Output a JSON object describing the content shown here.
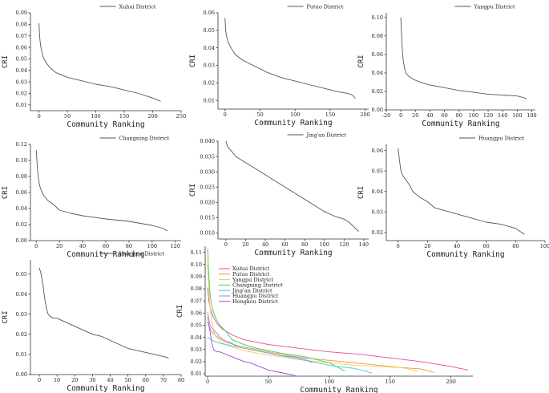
{
  "chart_data": [
    {
      "type": "line",
      "title": "",
      "xlabel": "Community Ranking",
      "ylabel": "CRI",
      "xticks": [
        0,
        50,
        100,
        150,
        200,
        250
      ],
      "yticks": [
        0.01,
        0.02,
        0.03,
        0.04,
        0.05,
        0.06,
        0.07,
        0.08,
        0.09
      ],
      "xlim": [
        -15,
        250
      ],
      "ylim": [
        0.005,
        0.09
      ],
      "series": [
        {
          "name": "Xuhui District",
          "color": "#555555",
          "x": [
            0,
            1,
            2,
            3,
            5,
            8,
            12,
            20,
            30,
            50,
            75,
            100,
            125,
            150,
            175,
            200,
            205,
            210,
            214
          ],
          "y": [
            0.081,
            0.07,
            0.065,
            0.061,
            0.056,
            0.051,
            0.047,
            0.042,
            0.038,
            0.034,
            0.031,
            0.028,
            0.026,
            0.023,
            0.02,
            0.016,
            0.015,
            0.014,
            0.013
          ]
        }
      ]
    },
    {
      "type": "line",
      "title": "",
      "xlabel": "Community Ranking",
      "ylabel": "CRI",
      "xticks": [
        0,
        50,
        100,
        150,
        200
      ],
      "yticks": [
        0.01,
        0.02,
        0.03,
        0.04,
        0.05,
        0.06
      ],
      "xlim": [
        -10,
        205
      ],
      "ylim": [
        0.005,
        0.06
      ],
      "series": [
        {
          "name": "Putuo District",
          "color": "#555555",
          "x": [
            0,
            1,
            2,
            4,
            6,
            10,
            15,
            25,
            40,
            60,
            80,
            100,
            120,
            140,
            160,
            175,
            182,
            186
          ],
          "y": [
            0.057,
            0.05,
            0.047,
            0.044,
            0.042,
            0.039,
            0.036,
            0.033,
            0.03,
            0.026,
            0.023,
            0.021,
            0.019,
            0.017,
            0.015,
            0.014,
            0.013,
            0.011
          ]
        }
      ]
    },
    {
      "type": "line",
      "title": "",
      "xlabel": "Community Ranking",
      "ylabel": "CRI",
      "xticks": [
        -20,
        0,
        20,
        40,
        60,
        80,
        100,
        120,
        140,
        160,
        180
      ],
      "yticks": [
        0.0,
        0.02,
        0.04,
        0.06,
        0.08,
        0.1
      ],
      "xlim": [
        -20,
        185
      ],
      "ylim": [
        0.0,
        0.105
      ],
      "series": [
        {
          "name": "Yangpu District",
          "color": "#555555",
          "x": [
            0,
            1,
            2,
            3,
            5,
            7,
            10,
            15,
            20,
            30,
            40,
            60,
            80,
            100,
            120,
            140,
            160,
            170,
            173
          ],
          "y": [
            0.1,
            0.08,
            0.065,
            0.055,
            0.045,
            0.04,
            0.037,
            0.034,
            0.032,
            0.029,
            0.027,
            0.024,
            0.021,
            0.019,
            0.017,
            0.016,
            0.015,
            0.013,
            0.012
          ]
        }
      ]
    },
    {
      "type": "line",
      "title": "",
      "xlabel": "Community Ranking",
      "ylabel": "CRI",
      "xticks": [
        0,
        20,
        40,
        60,
        80,
        100,
        120
      ],
      "yticks": [
        0.0,
        0.02,
        0.04,
        0.06,
        0.08,
        0.1,
        0.12
      ],
      "xlim": [
        -5,
        125
      ],
      "ylim": [
        0.0,
        0.12
      ],
      "series": [
        {
          "name": "Changning District",
          "color": "#555555",
          "x": [
            0,
            1,
            2,
            3,
            5,
            7,
            10,
            15,
            20,
            30,
            40,
            60,
            80,
            100,
            110,
            113
          ],
          "y": [
            0.113,
            0.09,
            0.076,
            0.068,
            0.06,
            0.055,
            0.05,
            0.045,
            0.038,
            0.034,
            0.031,
            0.027,
            0.024,
            0.019,
            0.015,
            0.012
          ]
        }
      ]
    },
    {
      "type": "line",
      "title": "",
      "xlabel": "Community Ranking",
      "ylabel": "CRI",
      "xticks": [
        0,
        20,
        40,
        60,
        80,
        100,
        120,
        140
      ],
      "yticks": [
        0.01,
        0.015,
        0.02,
        0.025,
        0.03,
        0.035,
        0.04
      ],
      "xlim": [
        -8,
        145
      ],
      "ylim": [
        0.008,
        0.04
      ],
      "series": [
        {
          "name": "Jing'an District",
          "color": "#555555",
          "x": [
            0,
            2,
            5,
            10,
            20,
            30,
            40,
            50,
            60,
            70,
            80,
            90,
            100,
            110,
            120,
            125,
            130,
            133,
            135
          ],
          "y": [
            0.04,
            0.038,
            0.037,
            0.035,
            0.033,
            0.031,
            0.029,
            0.027,
            0.025,
            0.023,
            0.021,
            0.019,
            0.017,
            0.0155,
            0.0145,
            0.0135,
            0.012,
            0.011,
            0.0105
          ]
        }
      ]
    },
    {
      "type": "line",
      "title": "",
      "xlabel": "Community Ranking",
      "ylabel": "CRI",
      "xticks": [
        0,
        20,
        40,
        60,
        80,
        100
      ],
      "yticks": [
        0.02,
        0.03,
        0.04,
        0.05,
        0.06
      ],
      "xlim": [
        -8,
        100
      ],
      "ylim": [
        0.016,
        0.063
      ],
      "series": [
        {
          "name": "Huangpu District",
          "color": "#555555",
          "x": [
            0,
            1,
            2,
            3,
            5,
            8,
            10,
            15,
            20,
            25,
            30,
            40,
            50,
            60,
            70,
            80,
            84,
            86
          ],
          "y": [
            0.061,
            0.055,
            0.05,
            0.048,
            0.046,
            0.043,
            0.04,
            0.037,
            0.035,
            0.032,
            0.031,
            0.029,
            0.027,
            0.025,
            0.024,
            0.022,
            0.02,
            0.019
          ]
        }
      ]
    },
    {
      "type": "line",
      "title": "",
      "xlabel": "Community Ranking",
      "ylabel": "CRI",
      "xticks": [
        0,
        10,
        20,
        30,
        40,
        50,
        60,
        70,
        80
      ],
      "yticks": [
        0.0,
        0.01,
        0.02,
        0.03,
        0.04,
        0.05
      ],
      "xlim": [
        -5,
        80
      ],
      "ylim": [
        0.0,
        0.057
      ],
      "series": [
        {
          "name": "Hongkou District",
          "color": "#555555",
          "x": [
            0,
            1,
            2,
            3,
            4,
            5,
            6,
            8,
            10,
            15,
            20,
            25,
            30,
            35,
            40,
            45,
            50,
            55,
            60,
            65,
            70,
            72,
            73
          ],
          "y": [
            0.053,
            0.05,
            0.045,
            0.038,
            0.033,
            0.03,
            0.029,
            0.028,
            0.028,
            0.026,
            0.024,
            0.022,
            0.02,
            0.019,
            0.017,
            0.015,
            0.013,
            0.012,
            0.011,
            0.01,
            0.009,
            0.0085,
            0.008
          ]
        }
      ]
    },
    {
      "type": "line",
      "title": "",
      "xlabel": "Community Ranking",
      "ylabel": "CRI",
      "xticks": [
        0,
        50,
        100,
        150,
        200
      ],
      "yticks": [
        0.01,
        0.02,
        0.03,
        0.04,
        0.05,
        0.06,
        0.07,
        0.08,
        0.09,
        0.1,
        0.11
      ],
      "xlim": [
        -2,
        218
      ],
      "ylim": [
        0.008,
        0.115
      ],
      "legend": "top-left",
      "series": [
        {
          "name": "Xuhui District",
          "color": "#e8479a",
          "x": [
            0,
            1,
            2,
            3,
            5,
            8,
            12,
            20,
            30,
            50,
            75,
            100,
            125,
            150,
            175,
            200,
            214
          ],
          "y": [
            0.081,
            0.07,
            0.065,
            0.061,
            0.056,
            0.051,
            0.047,
            0.042,
            0.038,
            0.034,
            0.031,
            0.028,
            0.026,
            0.023,
            0.02,
            0.016,
            0.013
          ]
        },
        {
          "name": "Putuo District",
          "color": "#f0933a",
          "x": [
            0,
            1,
            2,
            4,
            6,
            10,
            15,
            25,
            40,
            60,
            80,
            100,
            120,
            140,
            160,
            175,
            186
          ],
          "y": [
            0.057,
            0.05,
            0.047,
            0.044,
            0.042,
            0.039,
            0.036,
            0.033,
            0.03,
            0.026,
            0.023,
            0.021,
            0.019,
            0.017,
            0.015,
            0.014,
            0.011
          ]
        },
        {
          "name": "Yangpu District",
          "color": "#e6d45a",
          "x": [
            0,
            1,
            2,
            3,
            5,
            7,
            10,
            15,
            20,
            30,
            40,
            60,
            80,
            100,
            120,
            140,
            160,
            173
          ],
          "y": [
            0.1,
            0.08,
            0.065,
            0.055,
            0.045,
            0.04,
            0.037,
            0.034,
            0.032,
            0.029,
            0.027,
            0.024,
            0.021,
            0.019,
            0.017,
            0.016,
            0.015,
            0.012
          ]
        },
        {
          "name": "Changning District",
          "color": "#3fcf4c",
          "x": [
            0,
            1,
            2,
            3,
            5,
            7,
            10,
            15,
            20,
            30,
            40,
            60,
            80,
            100,
            113
          ],
          "y": [
            0.113,
            0.09,
            0.076,
            0.068,
            0.06,
            0.055,
            0.05,
            0.045,
            0.038,
            0.034,
            0.031,
            0.027,
            0.024,
            0.019,
            0.012
          ]
        },
        {
          "name": "Jing'an District",
          "color": "#43c8d6",
          "x": [
            0,
            5,
            10,
            20,
            30,
            40,
            50,
            60,
            70,
            80,
            90,
            100,
            110,
            120,
            130,
            135
          ],
          "y": [
            0.04,
            0.037,
            0.035,
            0.033,
            0.031,
            0.029,
            0.027,
            0.025,
            0.023,
            0.021,
            0.019,
            0.017,
            0.0155,
            0.0145,
            0.012,
            0.0105
          ]
        },
        {
          "name": "Huangpu District",
          "color": "#8e8ee8",
          "x": [
            0,
            1,
            2,
            3,
            5,
            8,
            10,
            15,
            20,
            25,
            30,
            40,
            50,
            60,
            70,
            80,
            86
          ],
          "y": [
            0.061,
            0.055,
            0.05,
            0.048,
            0.046,
            0.043,
            0.04,
            0.037,
            0.035,
            0.032,
            0.031,
            0.029,
            0.027,
            0.025,
            0.024,
            0.022,
            0.019
          ]
        },
        {
          "name": "Hongkou District",
          "color": "#a346d4",
          "x": [
            0,
            1,
            2,
            3,
            4,
            5,
            6,
            8,
            10,
            15,
            20,
            25,
            30,
            35,
            40,
            45,
            50,
            55,
            60,
            65,
            70,
            73
          ],
          "y": [
            0.053,
            0.05,
            0.045,
            0.038,
            0.033,
            0.03,
            0.029,
            0.028,
            0.028,
            0.026,
            0.024,
            0.022,
            0.02,
            0.019,
            0.017,
            0.015,
            0.013,
            0.012,
            0.011,
            0.01,
            0.009,
            0.008
          ]
        }
      ]
    }
  ]
}
